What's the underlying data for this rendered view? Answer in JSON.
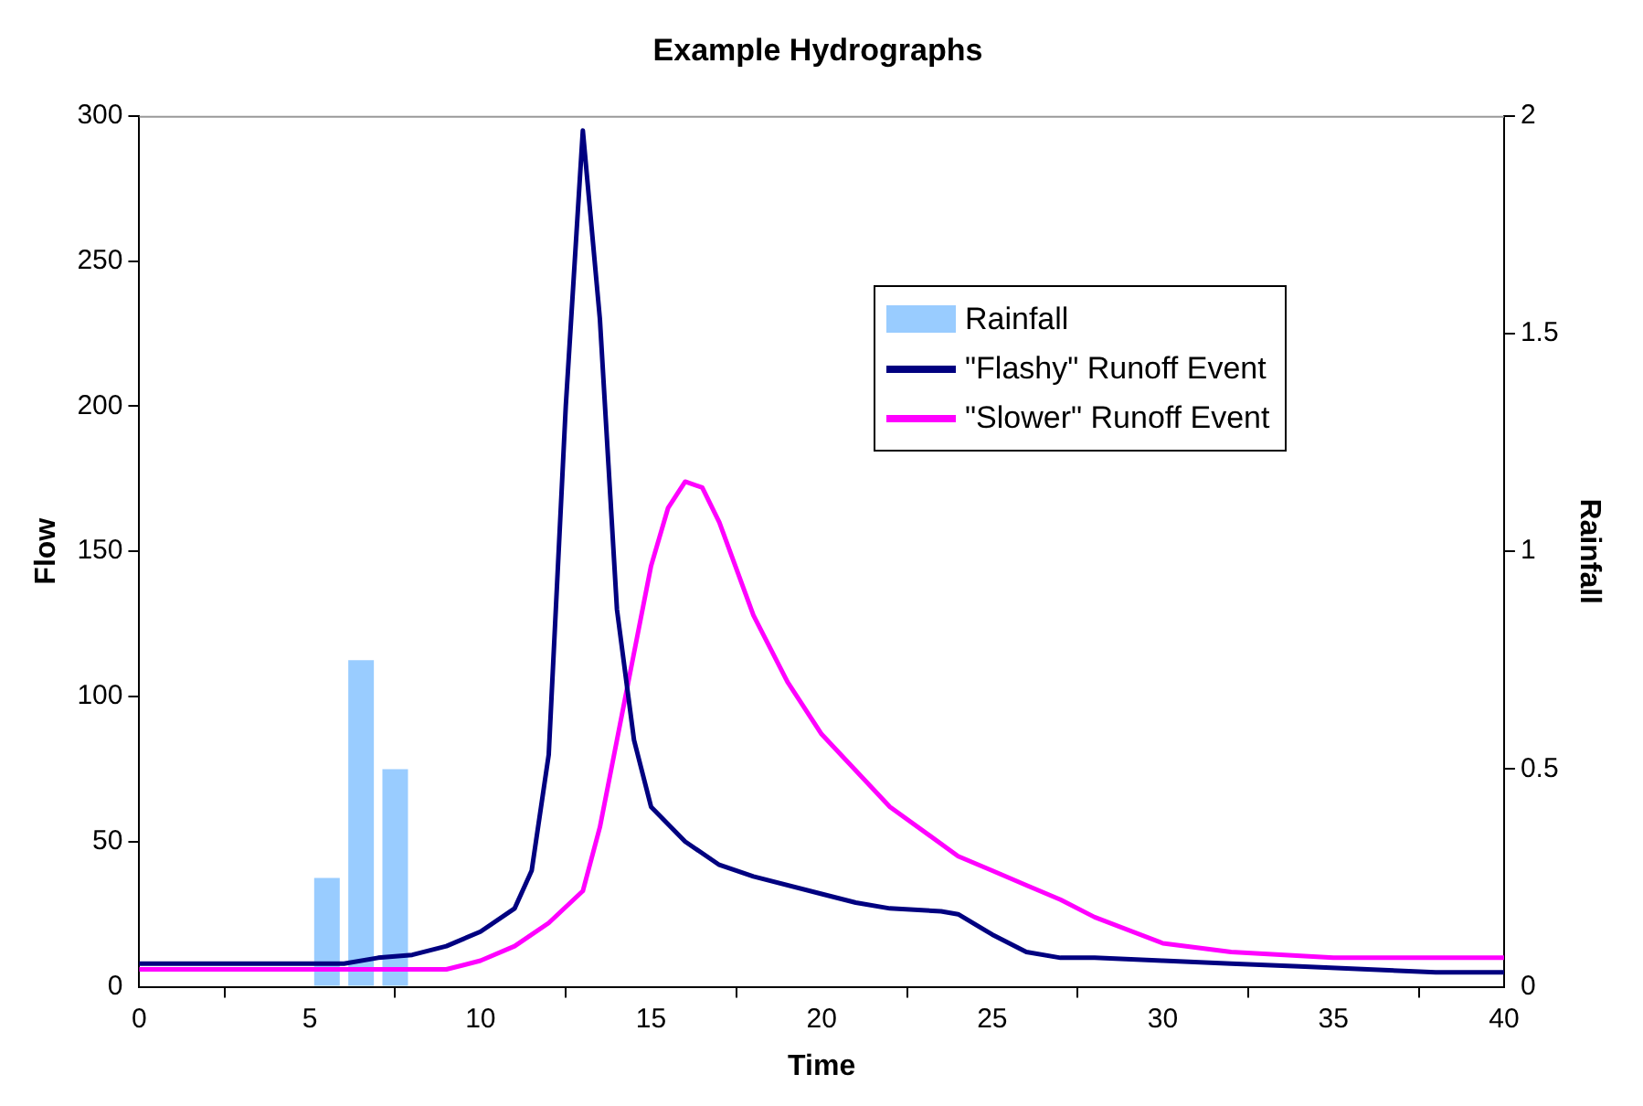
{
  "chart_data": {
    "type": "line",
    "title": "Example Hydrographs",
    "xlabel": "Time",
    "ylabel": "Flow",
    "y2label": "Rainfall",
    "xlim": [
      0,
      40
    ],
    "xticks": [
      0,
      5,
      10,
      15,
      20,
      25,
      30,
      35,
      40
    ],
    "ylim": [
      0,
      300
    ],
    "yticks": [
      0,
      50,
      100,
      150,
      200,
      250,
      300
    ],
    "y2lim": [
      0,
      2
    ],
    "y2ticks": [
      0,
      0.5,
      1,
      1.5,
      2
    ],
    "grid": false,
    "legend": "top right",
    "marker": "none",
    "line_style": "solid",
    "series": [
      {
        "name": "Rainfall",
        "type": "bar",
        "axis": "y2",
        "color": "#99ccff",
        "x": [
          5.5,
          6.5,
          7.5
        ],
        "values": [
          0.25,
          0.75,
          0.5
        ]
      },
      {
        "name": "\"Flashy\" Runoff Event",
        "color": "#000080",
        "x": [
          0,
          5,
          6,
          7,
          8,
          9,
          10,
          11,
          11.5,
          12,
          12.5,
          13,
          13.5,
          14,
          14.5,
          15,
          16,
          17,
          18,
          20,
          21,
          22,
          23.5,
          24,
          25,
          26,
          27,
          28,
          30,
          32,
          34,
          36,
          38,
          40
        ],
        "values": [
          8,
          8,
          8,
          10,
          11,
          14,
          19,
          27,
          40,
          80,
          200,
          295,
          230,
          130,
          85,
          62,
          50,
          42,
          38,
          32,
          29,
          27,
          26,
          25,
          18,
          12,
          10,
          10,
          9,
          8,
          7,
          6,
          5,
          5
        ]
      },
      {
        "name": "\"Slower\" Runoff Event",
        "color": "#ff00ff",
        "x": [
          0,
          8,
          9,
          10,
          11,
          12,
          13,
          13.5,
          14,
          14.5,
          15,
          15.5,
          16,
          16.5,
          17,
          18,
          19,
          20,
          22,
          24,
          25,
          26,
          27,
          28,
          30,
          32,
          35,
          40
        ],
        "values": [
          6,
          6,
          6,
          9,
          14,
          22,
          33,
          55,
          85,
          115,
          145,
          165,
          174,
          172,
          160,
          128,
          105,
          87,
          62,
          45,
          40,
          35,
          30,
          24,
          15,
          12,
          10,
          10
        ]
      }
    ]
  }
}
